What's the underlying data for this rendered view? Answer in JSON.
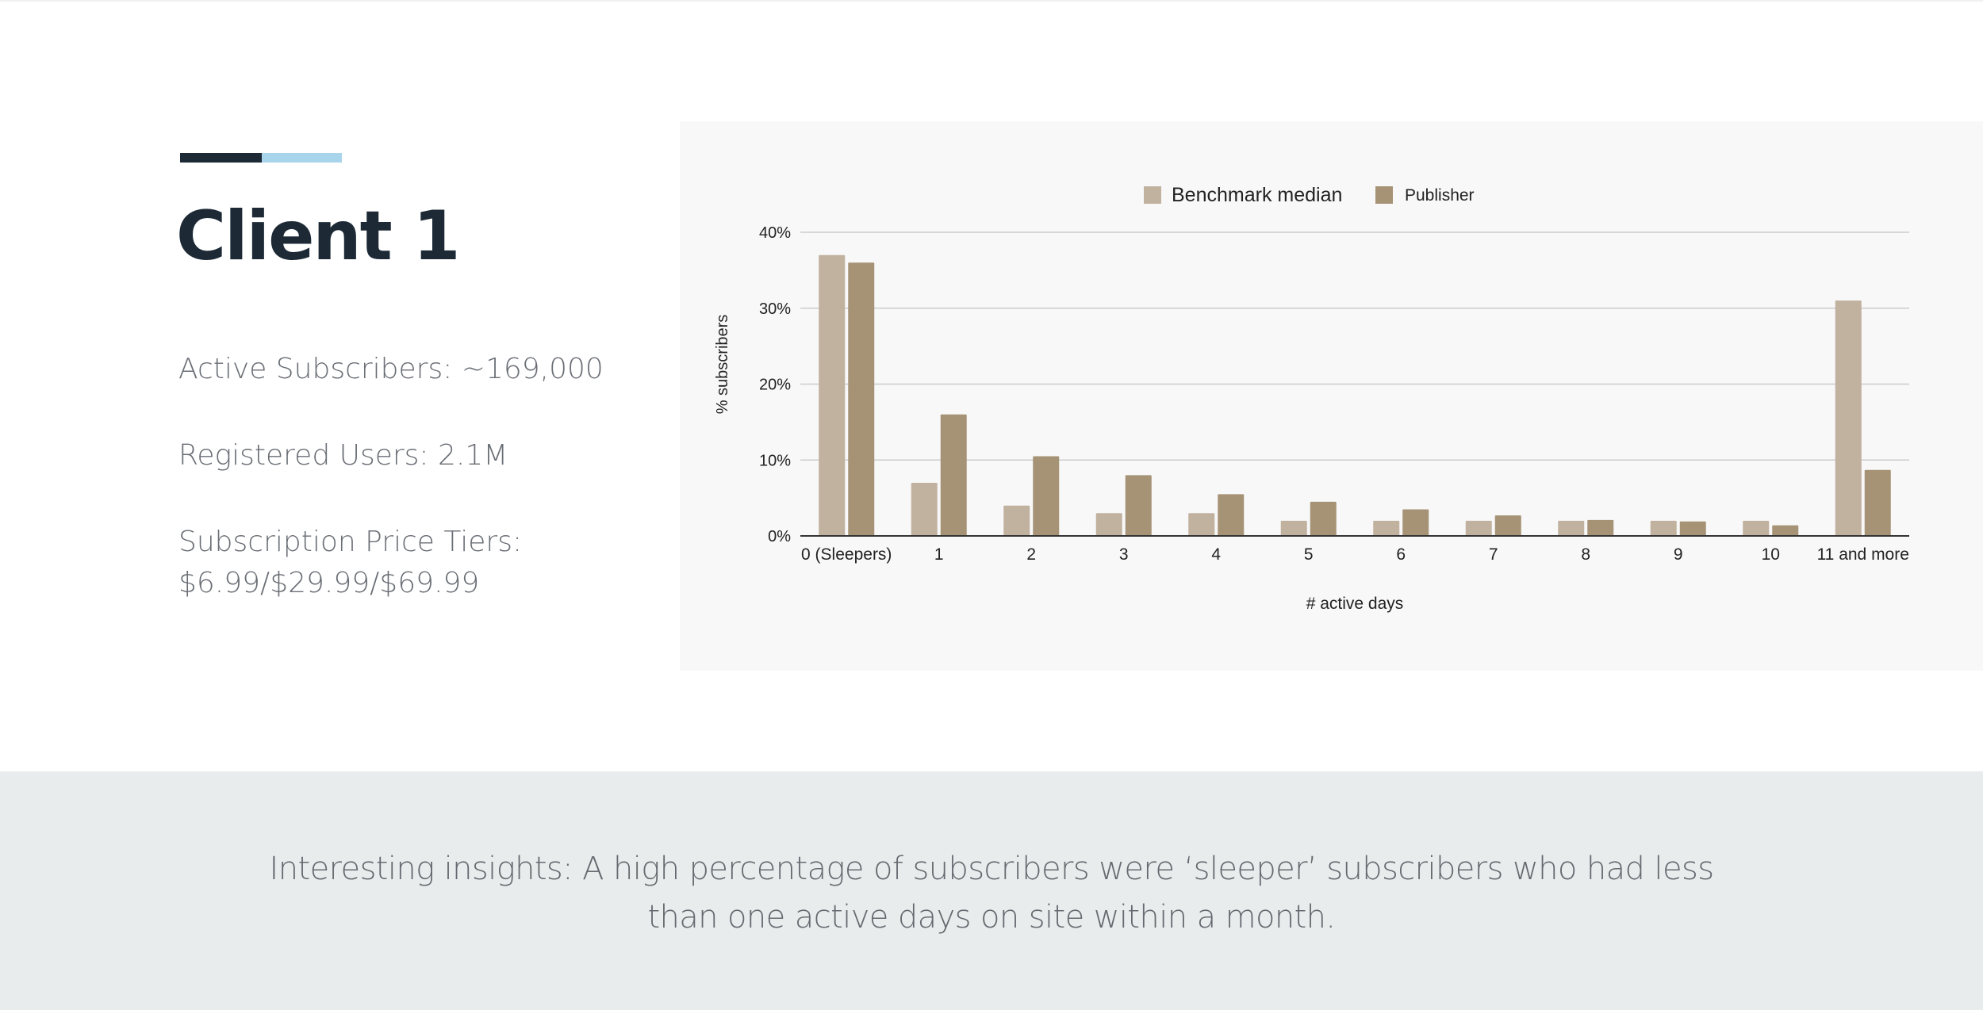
{
  "colors": {
    "heading": "#1d2a36",
    "accent_dark": "#1d2a36",
    "accent_light": "#a8d4ec",
    "benchmark": "#c1b19f",
    "publisher": "#a69376",
    "insight_bg": "#e8eced"
  },
  "client": {
    "title": "Client 1",
    "active_subscribers": "Active Subscribers: ~169,000",
    "registered_users": "Registered Users: 2.1M",
    "price_tiers_label": "Subscription Price Tiers:",
    "price_tiers_value": "$6.99/$29.99/$69.99"
  },
  "insight": {
    "line1": "Interesting insights: A high percentage of subscribers were ‘sleeper’ subscribers who had less",
    "line2": "than one active days on site within a month."
  },
  "chart_data": {
    "type": "bar",
    "title": "",
    "xlabel": "# active days",
    "ylabel": "% subscribers",
    "ylim": [
      0,
      40
    ],
    "yticks": [
      0,
      10,
      20,
      30,
      40
    ],
    "ytick_labels": [
      "0%",
      "10%",
      "20%",
      "30%",
      "40%"
    ],
    "grid": true,
    "legend_position": "top-center",
    "categories": [
      "0 (Sleepers)",
      "1",
      "2",
      "3",
      "4",
      "5",
      "6",
      "7",
      "8",
      "9",
      "10",
      "11 and more"
    ],
    "series": [
      {
        "name": "Benchmark median",
        "color": "#c1b19f",
        "values": [
          37,
          7,
          4,
          3,
          3,
          2,
          2,
          2,
          2,
          2,
          2,
          31
        ]
      },
      {
        "name": "Publisher",
        "color": "#a69376",
        "values": [
          36,
          16,
          10.5,
          8,
          5.5,
          4.5,
          3.5,
          2.7,
          2.1,
          1.9,
          1.4,
          8.7
        ]
      }
    ]
  }
}
